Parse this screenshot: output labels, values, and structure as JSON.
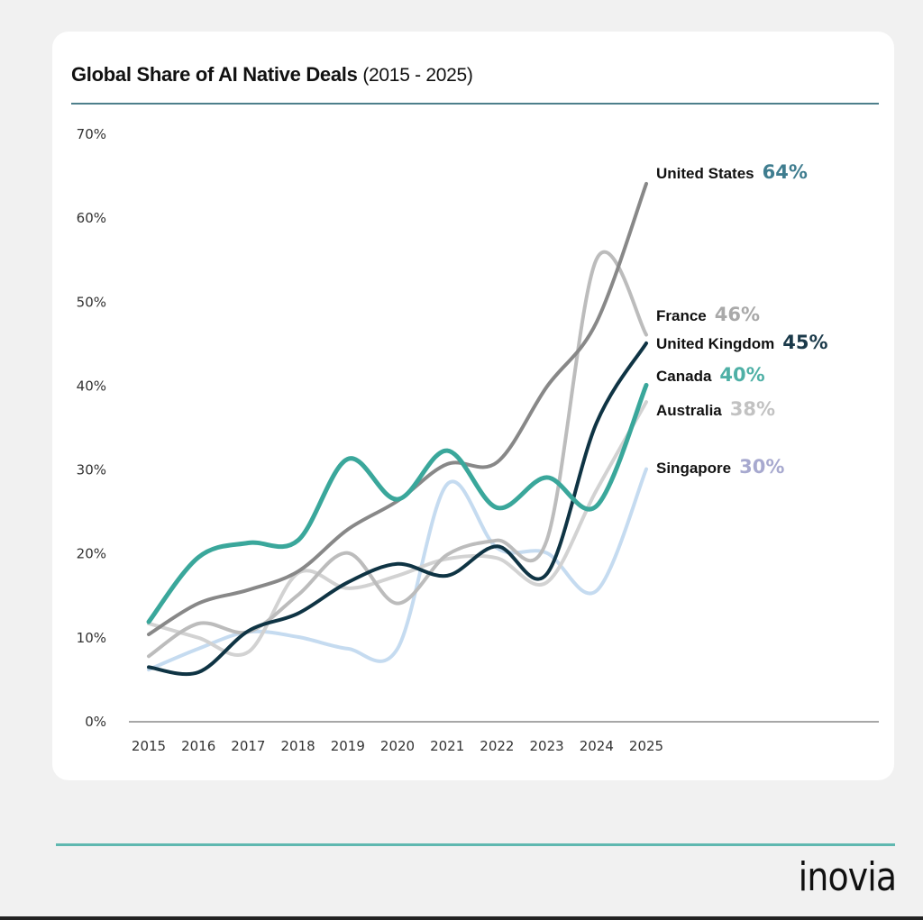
{
  "header": {
    "title": "Global Share of AI Native Deals",
    "subtitle": "(2015 - 2025)"
  },
  "footer": {
    "logo_text": "inovia"
  },
  "colors": {
    "title_rule": "#4d7f8b",
    "footer_rule": "#5fb8b0",
    "axis": "#8a8a8a"
  },
  "chart_data": {
    "type": "line",
    "title": "Global Share of AI Native Deals (2015 - 2025)",
    "xlabel": "",
    "ylabel": "",
    "x": [
      "2015",
      "2016",
      "2017",
      "2018",
      "2019",
      "2020",
      "2021",
      "2022",
      "2023",
      "2024",
      "2025"
    ],
    "ylim": [
      0,
      70
    ],
    "yticks": [
      0,
      10,
      20,
      30,
      40,
      50,
      60,
      70
    ],
    "ytick_labels": [
      "0%",
      "10%",
      "20%",
      "30%",
      "40%",
      "50%",
      "60%",
      "70%"
    ],
    "grid": false,
    "legend": "end-labels-right",
    "series": [
      {
        "name": "Singapore",
        "end_label": "30%",
        "color": "#c5dbf0",
        "label_color": "#a7a9cf",
        "width": 4,
        "values": [
          6.1,
          8.6,
          10.6,
          10.0,
          8.6,
          8.6,
          28.2,
          20.6,
          20.0,
          15.5,
          30
        ]
      },
      {
        "name": "Australia",
        "end_label": "38%",
        "color": "#d2d2d2",
        "label_color": "#c2c2c2",
        "width": 4,
        "values": [
          11.6,
          9.9,
          8.2,
          17.6,
          15.8,
          17.3,
          19.3,
          19.4,
          16.5,
          27.5,
          38
        ]
      },
      {
        "name": "France",
        "end_label": "46%",
        "color": "#bcbcbc",
        "label_color": "#a9a9a9",
        "width": 4,
        "values": [
          7.7,
          11.6,
          10.6,
          15.0,
          20.0,
          14.0,
          19.8,
          21.5,
          21.5,
          55.0,
          46
        ]
      },
      {
        "name": "United Kingdom",
        "end_label": "45%",
        "color": "#0f3444",
        "label_color": "#1b3a4a",
        "width": 4,
        "values": [
          6.4,
          5.8,
          10.7,
          12.8,
          16.5,
          18.7,
          17.3,
          20.8,
          17.5,
          35.5,
          45
        ]
      },
      {
        "name": "United States",
        "end_label": "64%",
        "color": "#888888",
        "label_color": "#3f7d8f",
        "width": 4,
        "values": [
          10.3,
          14.0,
          15.6,
          17.8,
          22.8,
          26.2,
          30.6,
          30.8,
          39.8,
          47.5,
          64
        ]
      },
      {
        "name": "Canada",
        "end_label": "40%",
        "color": "#3aa79b",
        "label_color": "#4fb0a6",
        "width": 5,
        "values": [
          11.8,
          19.5,
          21.2,
          21.5,
          31.2,
          26.4,
          32.2,
          25.4,
          29.0,
          25.6,
          40
        ]
      }
    ]
  }
}
